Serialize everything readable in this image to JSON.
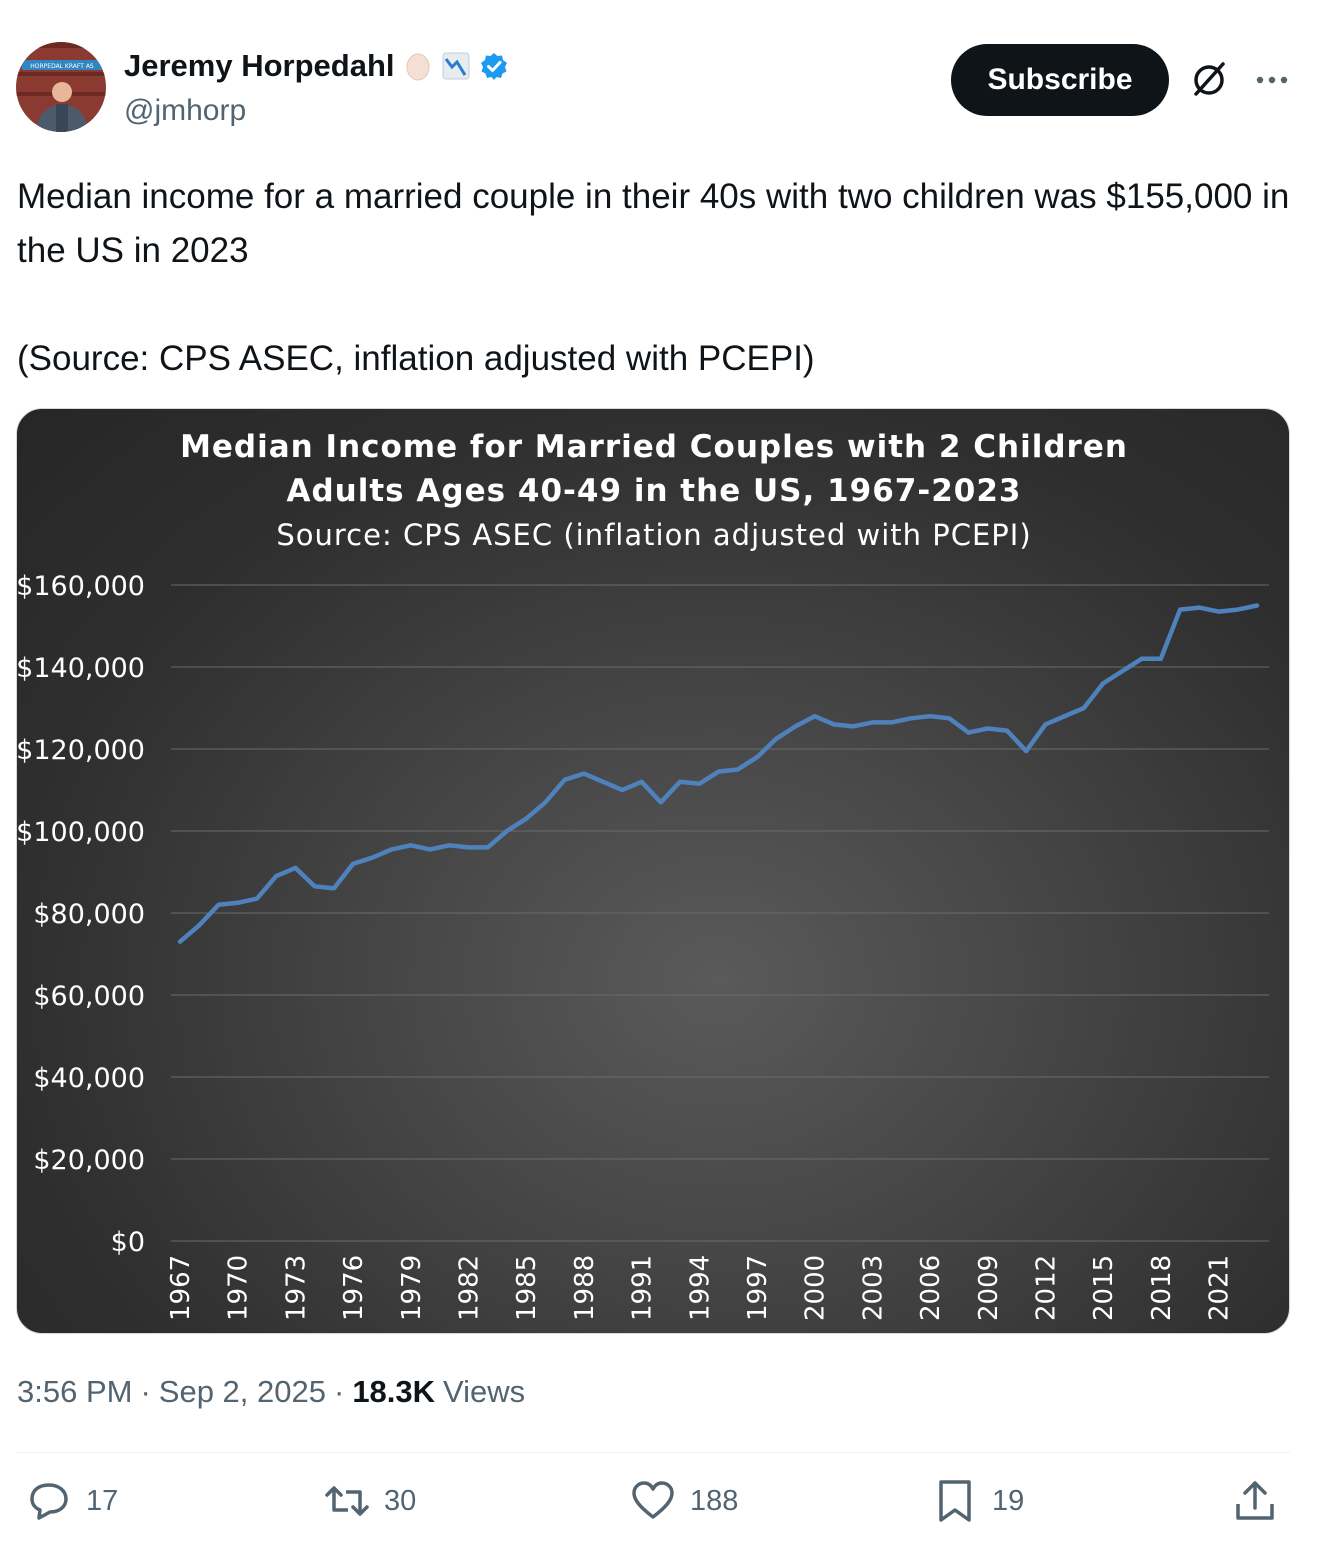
{
  "author": {
    "display_name": "Jeremy Horpedahl",
    "handle": "@jmhorp",
    "avatar_sign_text": "HORPEDAL KRAFT AS",
    "badges": [
      "egg-emoji",
      "chart-decreasing-emoji",
      "verified-badge-icon"
    ]
  },
  "header": {
    "subscribe_label": "Subscribe",
    "grok_icon": "grok-icon",
    "more_icon": "more-icon"
  },
  "tweet": {
    "text": "Median income for a married couple in their 40s with two children was $155,000 in the US in 2023\n\n(Source: CPS ASEC, inflation adjusted with PCEPI)"
  },
  "meta": {
    "time": "3:56 PM",
    "separator": "·",
    "date": "Sep 2, 2025",
    "views_count": "18.3K",
    "views_label": "Views"
  },
  "actions": {
    "replies": "17",
    "reposts": "30",
    "likes": "188",
    "bookmarks": "19"
  },
  "colors": {
    "line": "#4f81bd",
    "chart_text": "#ffffff",
    "subscribe_bg": "#0f1419",
    "verified": "#1d9bf0",
    "muted_text": "#536471"
  },
  "chart_data": {
    "type": "line",
    "title": "Median Income for Married Couples with 2 Children",
    "subtitle": "Adults Ages 40-49 in the US, 1967-2023",
    "source": "Source: CPS ASEC (inflation adjusted with PCEPI)",
    "ylim": [
      0,
      160000
    ],
    "y_ticks": [
      "$0",
      "$20,000",
      "$40,000",
      "$60,000",
      "$80,000",
      "$100,000",
      "$120,000",
      "$140,000",
      "$160,000"
    ],
    "x_tick_labels": [
      "1967",
      "1970",
      "1973",
      "1976",
      "1979",
      "1982",
      "1985",
      "1988",
      "1991",
      "1994",
      "1997",
      "2000",
      "2003",
      "2006",
      "2009",
      "2012",
      "2015",
      "2018",
      "2021"
    ],
    "grid": true,
    "legend": "none",
    "x": [
      1967,
      1968,
      1969,
      1970,
      1971,
      1972,
      1973,
      1974,
      1975,
      1976,
      1977,
      1978,
      1979,
      1980,
      1981,
      1982,
      1983,
      1984,
      1985,
      1986,
      1987,
      1988,
      1989,
      1990,
      1991,
      1992,
      1993,
      1994,
      1995,
      1996,
      1997,
      1998,
      1999,
      2000,
      2001,
      2002,
      2003,
      2004,
      2005,
      2006,
      2007,
      2008,
      2009,
      2010,
      2011,
      2012,
      2013,
      2014,
      2015,
      2016,
      2017,
      2018,
      2019,
      2020,
      2021,
      2022,
      2023
    ],
    "values": [
      73000,
      77000,
      82000,
      82500,
      83500,
      89000,
      91000,
      86500,
      86000,
      92000,
      93500,
      95500,
      96500,
      95500,
      96500,
      96000,
      96000,
      100000,
      103000,
      107000,
      112500,
      114000,
      112000,
      110000,
      112000,
      107000,
      112000,
      111500,
      114500,
      115000,
      118000,
      122500,
      125500,
      128000,
      126000,
      125500,
      126500,
      126500,
      127500,
      128000,
      127500,
      124000,
      125000,
      124500,
      119500,
      126000,
      128000,
      130000,
      136000,
      139000,
      142000,
      142000,
      154000,
      154500,
      153500,
      154000,
      155000
    ]
  }
}
